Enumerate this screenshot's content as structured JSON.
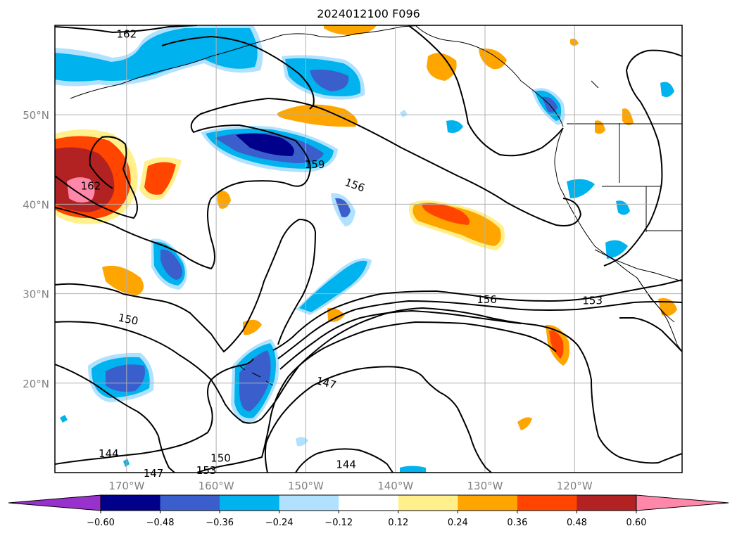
{
  "title": "2024012100 F096",
  "colors": {
    "ocean": "#ffffff",
    "land_line": "#000000",
    "grid": "#b0b0b0",
    "contour": "#000000",
    "fill_neg": [
      "#9932cc",
      "#00008b",
      "#3a5fcd",
      "#00b2ee",
      "#b0e2ff"
    ],
    "fill_pos": [
      "#fff08c",
      "#ffa500",
      "#ff4500",
      "#b22222",
      "#ff88aa"
    ]
  },
  "map": {
    "projection": "lat-lon",
    "lon_range": [
      -178,
      -108
    ],
    "lat_range": [
      10,
      60
    ],
    "gridlines": true,
    "lat_ticks": [
      "20°N",
      "30°N",
      "40°N",
      "50°N"
    ],
    "lat_tick_values": [
      20,
      30,
      40,
      50
    ],
    "lon_ticks": [
      "170°W",
      "160°W",
      "150°W",
      "140°W",
      "130°W",
      "120°W"
    ],
    "lon_tick_values": [
      -170,
      -160,
      -150,
      -140,
      -130,
      -120
    ],
    "contour_labels": [
      {
        "text": "162",
        "lon": -170,
        "lat": 59.1
      },
      {
        "text": "162",
        "lon": -174,
        "lat": 42.1
      },
      {
        "text": "159",
        "lon": -149,
        "lat": 44.5
      },
      {
        "text": "156",
        "lon": -144.5,
        "lat": 42.2
      },
      {
        "text": "156",
        "lon": -129.8,
        "lat": 29.4
      },
      {
        "text": "153",
        "lon": -118,
        "lat": 29.3
      },
      {
        "text": "150",
        "lon": -169.8,
        "lat": 27.2
      },
      {
        "text": "147",
        "lon": -147.7,
        "lat": 20.1
      },
      {
        "text": "144",
        "lon": -172,
        "lat": 12.2
      },
      {
        "text": "144",
        "lon": -145.5,
        "lat": 11.0
      },
      {
        "text": "150",
        "lon": -159.5,
        "lat": 11.7
      },
      {
        "text": "153",
        "lon": -161.1,
        "lat": 10.3
      },
      {
        "text": "147",
        "lon": -167,
        "lat": 10.0
      }
    ]
  },
  "colorbar": {
    "levels": [
      -0.6,
      -0.48,
      -0.36,
      -0.24,
      -0.12,
      0.12,
      0.24,
      0.36,
      0.48,
      0.6
    ],
    "tick_labels": [
      "−0.60",
      "−0.48",
      "−0.36",
      "−0.24",
      "−0.12",
      "0.12",
      "0.24",
      "0.36",
      "0.48",
      "0.60"
    ],
    "extend": "both"
  }
}
